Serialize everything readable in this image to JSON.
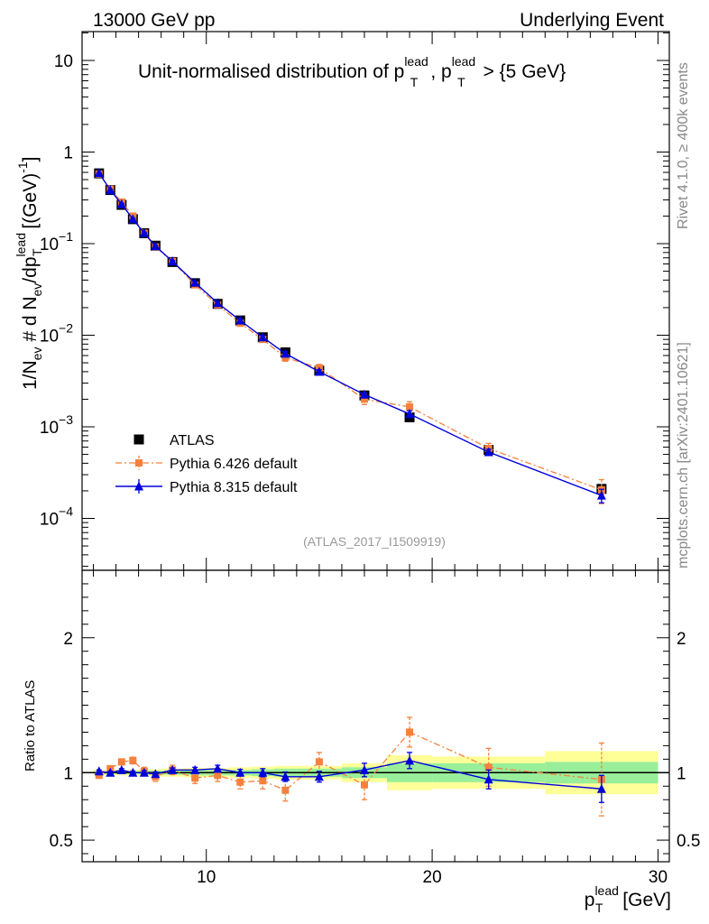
{
  "header": {
    "left": "13000 GeV pp",
    "right": "Underlying Event"
  },
  "side": {
    "rivet": "Rivet 4.1.0, ≥ 400k events",
    "mcplots": "mcplots.cern.ch [arXiv:2401.10621]"
  },
  "chart_data": {
    "type": "line",
    "title": {
      "main": "Unit-normalised distribution of p",
      "sup": "lead",
      "sub": "T",
      "mid": ", p",
      "end": " > {5 GeV}"
    },
    "analysis_tag": "(ATLAS_2017_I1509919)",
    "xlabel": {
      "main": "p",
      "sup": "lead",
      "sub": "T",
      "unit": " [GeV]"
    },
    "ylabel": "1/N_ev # d N_ev/dp_T^lead [(GeV)^-1]",
    "xlim": [
      4.5,
      30.5
    ],
    "ylim": [
      3e-05,
      20
    ],
    "xticks": [
      10,
      20,
      30
    ],
    "xtick_labels": [
      "10",
      "20",
      "30"
    ],
    "ytick_labels": [
      {
        "v": 10,
        "base": "10",
        "exp": ""
      },
      {
        "v": 1,
        "base": "1",
        "exp": ""
      },
      {
        "v": 0.1,
        "base": "10",
        "exp": "−1"
      },
      {
        "v": 0.01,
        "base": "10",
        "exp": "−2"
      },
      {
        "v": 0.001,
        "base": "10",
        "exp": "−3"
      },
      {
        "v": 0.0001,
        "base": "10",
        "exp": "−4"
      }
    ],
    "legend": [
      {
        "name": "ATLAS",
        "marker": "square",
        "color": "#000000"
      },
      {
        "name": "Pythia 6.426 default",
        "marker": "square",
        "color": "#f5813c"
      },
      {
        "name": "Pythia 8.315 default",
        "marker": "triangle",
        "color": "#0000dd"
      }
    ],
    "x": [
      5.25,
      5.75,
      6.25,
      6.75,
      7.25,
      7.75,
      8.5,
      9.5,
      10.5,
      11.5,
      12.5,
      13.5,
      15,
      17,
      19,
      22.5,
      27.5
    ],
    "bin_edges": [
      5,
      5.5,
      6,
      6.5,
      7,
      7.5,
      8,
      9,
      10,
      11,
      12,
      13,
      14,
      16,
      18,
      20,
      25,
      30
    ],
    "series": [
      {
        "name": "ATLAS",
        "values": [
          0.585,
          0.385,
          0.265,
          0.185,
          0.13,
          0.095,
          0.063,
          0.037,
          0.022,
          0.0145,
          0.0095,
          0.0065,
          0.0041,
          0.0022,
          0.00127,
          0.00056,
          0.00021
        ]
      },
      {
        "name": "Pythia 6.426 default",
        "values": [
          0.575,
          0.395,
          0.285,
          0.2,
          0.13,
          0.092,
          0.064,
          0.0355,
          0.0215,
          0.0135,
          0.009,
          0.0057,
          0.0044,
          0.002,
          0.00165,
          0.00058,
          0.000205
        ],
        "errors": [
          0.01,
          0.008,
          0.006,
          0.005,
          0.004,
          0.003,
          0.002,
          0.0015,
          0.001,
          0.0008,
          0.0006,
          0.0005,
          0.0004,
          0.00025,
          0.00023,
          8e-05,
          6e-05
        ]
      },
      {
        "name": "Pythia 8.315 default",
        "values": [
          0.59,
          0.385,
          0.27,
          0.185,
          0.13,
          0.094,
          0.064,
          0.0375,
          0.0225,
          0.0145,
          0.0095,
          0.0063,
          0.004,
          0.00225,
          0.00138,
          0.00053,
          0.000178
        ],
        "errors": [
          0.008,
          0.006,
          0.005,
          0.004,
          0.003,
          0.002,
          0.0015,
          0.001,
          0.0007,
          0.0005,
          0.0004,
          0.0003,
          0.0002,
          0.0001,
          0.00012,
          4e-05,
          3e-05
        ]
      }
    ],
    "ratio": {
      "ylabel": "Ratio to ATLAS",
      "ylim": [
        0.34,
        2.5
      ],
      "ytick_labels": [
        {
          "v": 0.5,
          "label": "0.5"
        },
        {
          "v": 1,
          "label": "1"
        },
        {
          "v": 2,
          "label": "2"
        }
      ],
      "band_inner": [
        0.01,
        0.01,
        0.01,
        0.01,
        0.015,
        0.015,
        0.015,
        0.02,
        0.02,
        0.02,
        0.025,
        0.03,
        0.03,
        0.04,
        0.07,
        0.07,
        0.08
      ],
      "band_outer": [
        0.02,
        0.02,
        0.02,
        0.02,
        0.025,
        0.025,
        0.03,
        0.035,
        0.035,
        0.04,
        0.045,
        0.05,
        0.05,
        0.07,
        0.13,
        0.12,
        0.16
      ],
      "series": [
        {
          "name": "Pythia 6.426 default",
          "values": [
            0.98,
            1.03,
            1.08,
            1.09,
            1.01,
            0.97,
            1.02,
            0.96,
            0.98,
            0.93,
            0.94,
            0.87,
            1.08,
            0.91,
            1.3,
            1.04,
            0.95
          ],
          "errors": [
            0.015,
            0.015,
            0.02,
            0.025,
            0.03,
            0.035,
            0.035,
            0.04,
            0.045,
            0.05,
            0.06,
            0.08,
            0.07,
            0.11,
            0.11,
            0.14,
            0.27
          ]
        },
        {
          "name": "Pythia 8.315 default",
          "values": [
            1.01,
            1.0,
            1.02,
            1.0,
            1.0,
            0.99,
            1.02,
            1.02,
            1.03,
            1.0,
            1.0,
            0.97,
            0.97,
            1.02,
            1.09,
            0.95,
            0.88
          ],
          "errors": [
            0.01,
            0.01,
            0.01,
            0.012,
            0.015,
            0.015,
            0.015,
            0.02,
            0.025,
            0.025,
            0.03,
            0.035,
            0.04,
            0.05,
            0.06,
            0.07,
            0.1
          ]
        }
      ]
    }
  }
}
